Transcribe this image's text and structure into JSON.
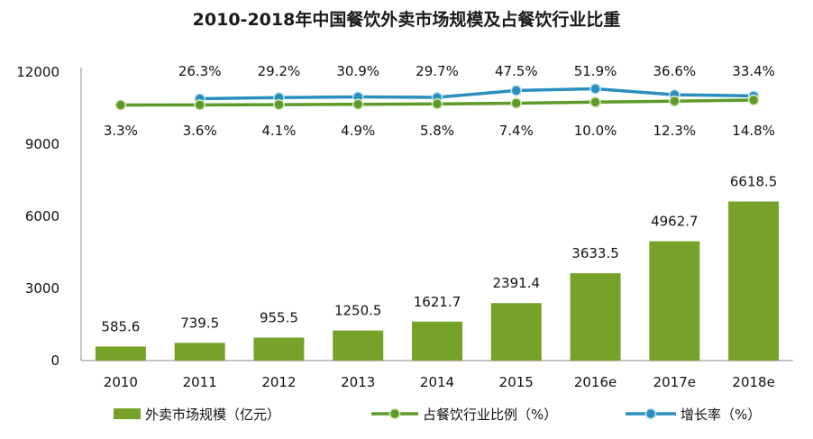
{
  "chart_data": {
    "type": "bar",
    "title": "2010-2018年中国餐饮外卖市场规模及占餐饮行业比重",
    "categories": [
      "2010",
      "2011",
      "2012",
      "2013",
      "2014",
      "2015",
      "2016e",
      "2017e",
      "2018e"
    ],
    "ylim": [
      0,
      12000
    ],
    "yticks": [
      "0",
      "3000",
      "6000",
      "9000",
      "12000"
    ],
    "series": [
      {
        "name": "外卖市场规模（亿元）",
        "type": "bar",
        "color": "#77a22a",
        "values": [
          585.6,
          739.5,
          955.5,
          1250.5,
          1621.7,
          2391.4,
          3633.5,
          4962.7,
          6618.5
        ],
        "labels": [
          "585.6",
          "739.5",
          "955.5",
          "1250.5",
          "1621.7",
          "2391.4",
          "3633.5",
          "4962.7",
          "6618.5"
        ]
      },
      {
        "name": "占餐饮行业比例（%）",
        "type": "line",
        "color": "#5e9a2a",
        "values": [
          3.3,
          3.6,
          4.1,
          4.9,
          5.8,
          7.4,
          10.0,
          12.3,
          14.8
        ],
        "labels": [
          "3.3%",
          "3.6%",
          "4.1%",
          "4.9%",
          "5.8%",
          "7.4%",
          "10.0%",
          "12.3%",
          "14.8%"
        ]
      },
      {
        "name": "增长率（%）",
        "type": "line",
        "color": "#2a8fbf",
        "values": [
          null,
          26.3,
          29.2,
          30.9,
          29.7,
          47.5,
          51.9,
          36.6,
          33.4
        ],
        "labels": [
          "",
          "26.3%",
          "29.2%",
          "30.9%",
          "29.7%",
          "47.5%",
          "51.9%",
          "36.6%",
          "33.4%"
        ]
      }
    ],
    "grid": false,
    "legend_position": "bottom"
  }
}
